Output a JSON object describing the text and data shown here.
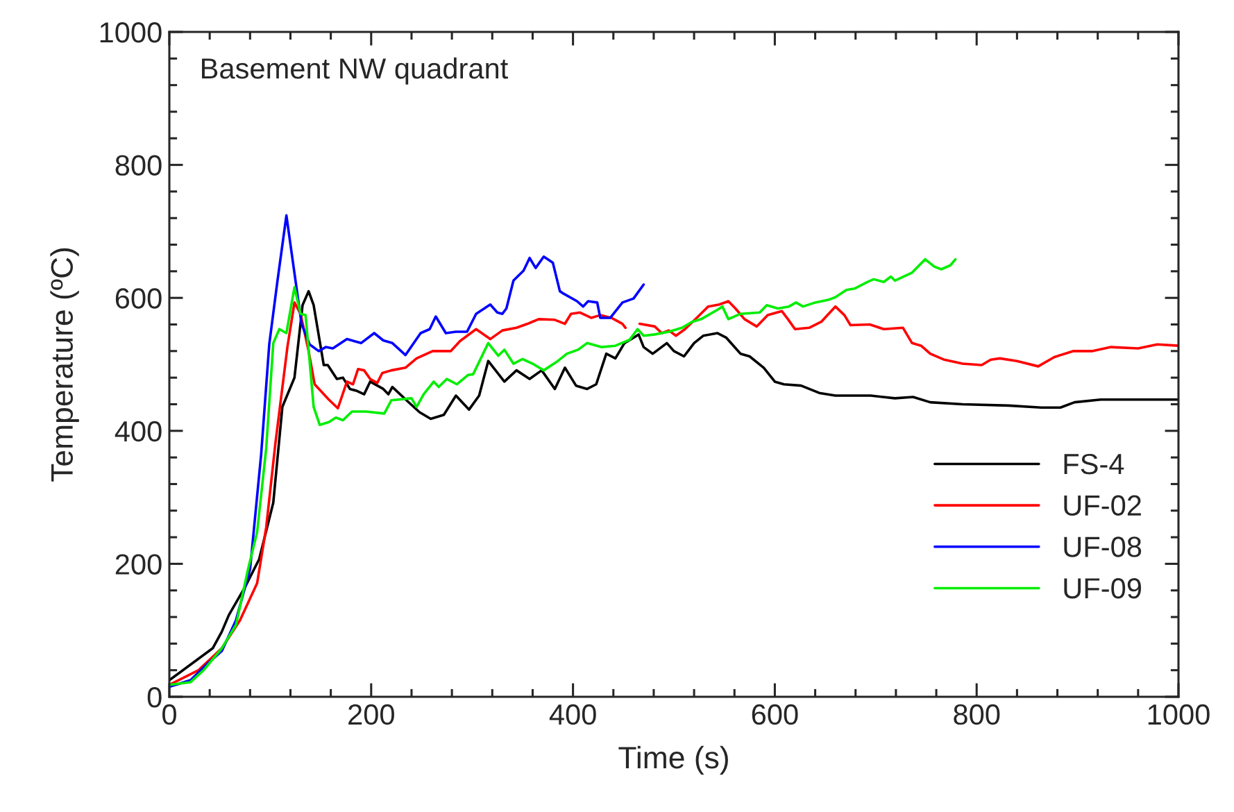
{
  "chart_data": {
    "type": "line",
    "title": "Basement NW quadrant",
    "xlabel": "Time (s)",
    "ylabel": "Temperature (ºC)",
    "xlim": [
      0,
      1000
    ],
    "ylim": [
      0,
      1000
    ],
    "xticks": [
      0,
      200,
      400,
      600,
      800,
      1000
    ],
    "yticks": [
      0,
      200,
      400,
      600,
      800,
      1000
    ],
    "grid": false,
    "legend": "bottom right",
    "line_style": "solid",
    "marker": "none",
    "series": [
      {
        "name": "FS-4",
        "color": "#000000",
        "x": [
          0,
          43,
          52,
          59,
          75,
          89,
          103,
          112,
          124,
          132,
          138,
          143,
          153,
          157,
          166,
          172,
          179,
          186,
          193,
          199,
          212,
          217,
          221,
          235,
          248,
          259,
          272,
          284,
          297,
          307,
          316,
          332,
          344,
          357,
          369,
          382,
          392,
          403,
          414,
          423,
          433,
          442,
          451,
          461,
          465,
          470,
          479,
          493,
          500,
          510,
          520,
          529,
          543,
          552,
          566,
          575,
          589,
          600,
          609,
          626,
          644,
          660,
          695,
          719,
          737,
          754,
          786,
          832,
          864,
          883,
          897,
          923,
          951,
          1000
        ],
        "values": [
          25,
          73,
          98,
          123,
          165,
          207,
          292,
          436,
          480,
          589,
          610,
          589,
          499,
          499,
          478,
          480,
          463,
          460,
          455,
          474,
          463,
          455,
          466,
          446,
          428,
          418,
          424,
          453,
          432,
          453,
          505,
          474,
          491,
          478,
          491,
          463,
          495,
          468,
          463,
          470,
          516,
          509,
          532,
          541,
          545,
          526,
          516,
          532,
          520,
          512,
          532,
          543,
          547,
          540,
          516,
          512,
          495,
          474,
          470,
          468,
          457,
          453,
          453,
          449,
          451,
          443,
          440,
          438,
          435,
          435,
          443,
          447,
          447,
          447
        ]
      },
      {
        "name": "UF-02",
        "color": "#ff0000",
        "x": [
          0,
          29,
          52,
          70,
          87,
          96,
          105,
          117,
          124,
          130,
          138,
          144,
          158,
          167,
          176,
          182,
          187,
          193,
          199,
          206,
          211,
          220,
          234,
          245,
          261,
          279,
          288,
          304,
          318,
          330,
          344,
          355,
          366,
          382,
          392,
          398,
          407,
          418,
          427,
          438,
          449,
          452,
          459,
          466,
          481,
          488,
          495,
          502,
          511,
          524,
          534,
          545,
          554,
          561,
          570,
          582,
          593,
          607,
          613,
          620,
          634,
          646,
          660,
          669,
          675,
          694,
          708,
          727,
          736,
          745,
          754,
          768,
          786,
          805,
          814,
          823,
          840,
          861,
          877,
          896,
          915,
          933,
          960,
          979,
          1000
        ],
        "values": [
          18,
          40,
          73,
          115,
          171,
          255,
          380,
          526,
          593,
          576,
          520,
          470,
          447,
          434,
          474,
          470,
          493,
          491,
          478,
          472,
          487,
          491,
          495,
          509,
          520,
          520,
          535,
          553,
          538,
          551,
          555,
          561,
          568,
          567,
          561,
          576,
          578,
          570,
          574,
          570,
          561,
          555,
          null,
          561,
          557,
          547,
          551,
          543,
          553,
          572,
          587,
          590,
          595,
          584,
          568,
          557,
          574,
          580,
          568,
          553,
          555,
          564,
          587,
          574,
          559,
          560,
          553,
          555,
          532,
          528,
          516,
          507,
          501,
          499,
          507,
          509,
          505,
          497,
          511,
          520,
          520,
          526,
          524,
          530,
          528
        ]
      },
      {
        "name": "UF-08",
        "color": "#0000ff",
        "x": [
          0,
          21,
          38,
          52,
          66,
          80,
          91,
          99,
          107,
          116,
          124,
          131,
          139,
          148,
          155,
          162,
          176,
          190,
          203,
          212,
          221,
          234,
          249,
          258,
          264,
          274,
          284,
          295,
          304,
          318,
          325,
          330,
          334,
          341,
          351,
          357,
          363,
          371,
          380,
          387,
          391,
          404,
          410,
          415,
          424,
          427,
          437,
          449,
          460,
          470
        ],
        "values": [
          15,
          25,
          50,
          69,
          115,
          192,
          365,
          530,
          624,
          724,
          637,
          561,
          530,
          520,
          526,
          524,
          538,
          532,
          547,
          536,
          532,
          514,
          547,
          553,
          572,
          547,
          549,
          549,
          576,
          590,
          578,
          576,
          584,
          626,
          641,
          660,
          645,
          662,
          653,
          610,
          606,
          595,
          587,
          595,
          593,
          570,
          570,
          593,
          599,
          620
        ]
      },
      {
        "name": "UF-09",
        "color": "#00ee00",
        "x": [
          0,
          21,
          34,
          52,
          66,
          78,
          87,
          96,
          103,
          109,
          116,
          124,
          130,
          135,
          143,
          149,
          158,
          165,
          172,
          181,
          195,
          213,
          220,
          240,
          245,
          252,
          262,
          267,
          275,
          285,
          296,
          301,
          316,
          326,
          332,
          341,
          350,
          360,
          371,
          385,
          394,
          405,
          414,
          428,
          442,
          456,
          464,
          470,
          481,
          495,
          508,
          518,
          527,
          543,
          548,
          554,
          566,
          585,
          592,
          603,
          614,
          621,
          628,
          640,
          653,
          660,
          671,
          679,
          692,
          698,
          708,
          715,
          719,
          736,
          749,
          758,
          765,
          774,
          779
        ],
        "values": [
          18,
          22,
          40,
          73,
          108,
          192,
          248,
          374,
          532,
          553,
          547,
          616,
          576,
          574,
          436,
          409,
          413,
          420,
          416,
          429,
          429,
          426,
          446,
          449,
          436,
          455,
          474,
          466,
          478,
          470,
          484,
          485,
          532,
          513,
          522,
          501,
          508,
          501,
          491,
          505,
          516,
          522,
          532,
          526,
          528,
          537,
          553,
          543,
          545,
          549,
          555,
          564,
          568,
          582,
          587,
          568,
          576,
          578,
          589,
          584,
          587,
          593,
          587,
          593,
          597,
          601,
          612,
          614,
          624,
          628,
          624,
          632,
          626,
          638,
          658,
          647,
          643,
          649,
          658
        ]
      }
    ]
  }
}
